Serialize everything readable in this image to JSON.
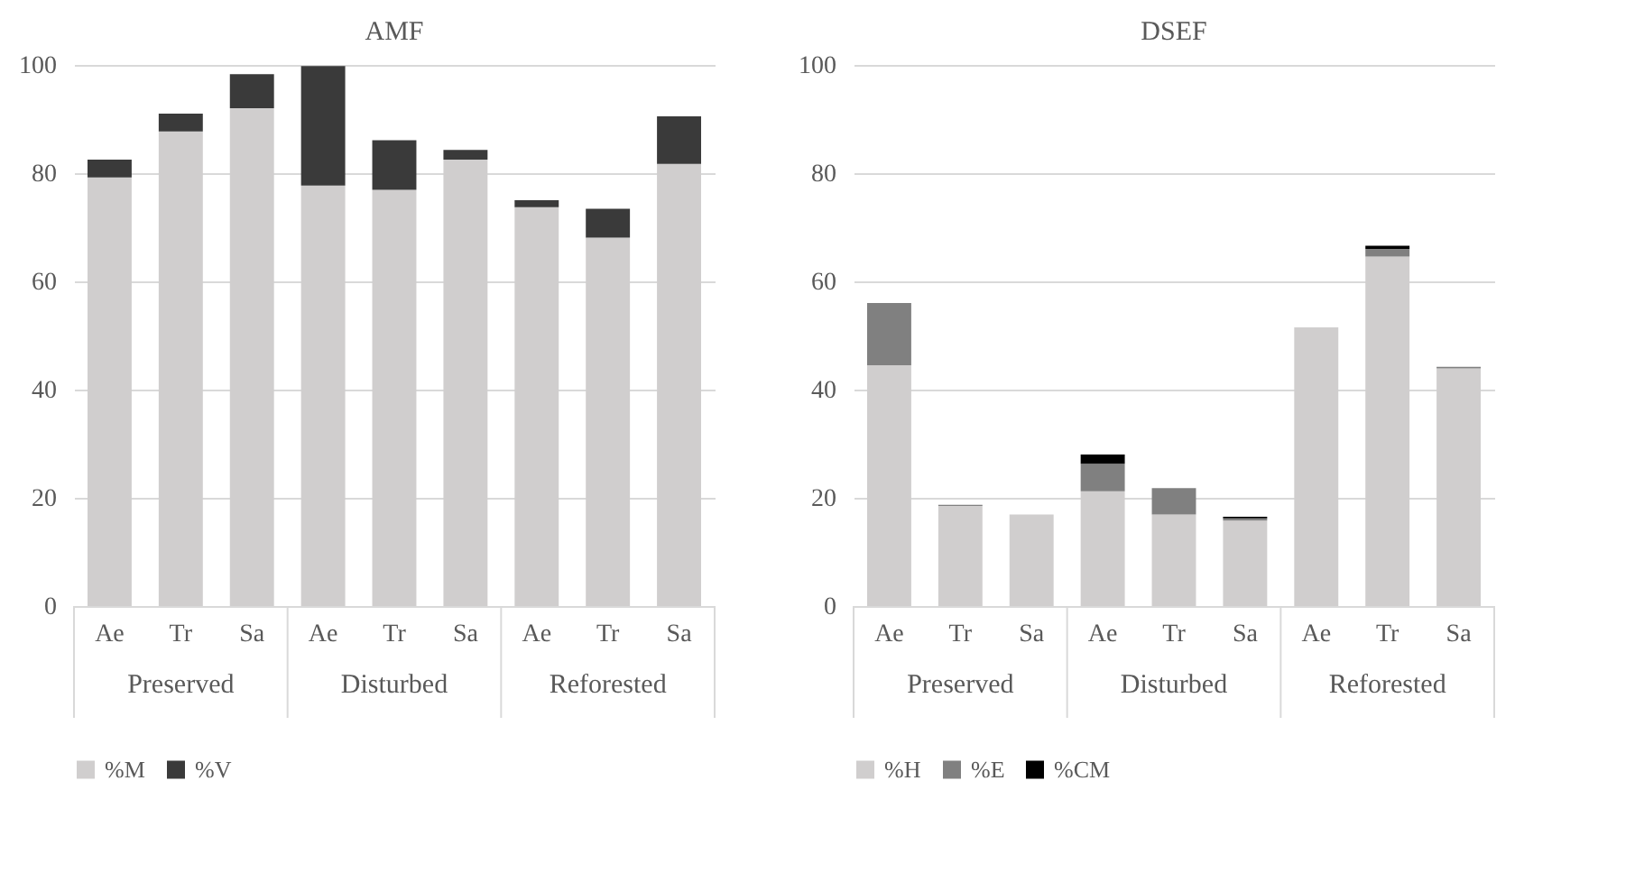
{
  "chart_data": [
    {
      "type": "bar",
      "title": "AMF",
      "stacked": true,
      "categories": [
        "Ae",
        "Tr",
        "Sa",
        "Ae",
        "Tr",
        "Sa",
        "Ae",
        "Tr",
        "Sa"
      ],
      "annotations": [
        "Preserved",
        "Disturbed",
        "Reforested"
      ],
      "ylim": [
        0,
        100
      ],
      "yticks": [
        0,
        20,
        40,
        60,
        80,
        100
      ],
      "grid": "y",
      "legend": "bottom",
      "series": [
        {
          "name": "%M",
          "color": "#d0cece",
          "values": [
            79.2,
            87.7,
            92.0,
            77.7,
            76.9,
            82.5,
            73.7,
            68.1,
            81.7
          ]
        },
        {
          "name": "%V",
          "color": "#3a3a3a",
          "values": [
            3.3,
            3.3,
            6.3,
            22.1,
            9.2,
            1.8,
            1.3,
            5.3,
            8.8
          ]
        }
      ]
    },
    {
      "type": "bar",
      "title": "DSEF",
      "stacked": true,
      "categories": [
        "Ae",
        "Tr",
        "Sa",
        "Ae",
        "Tr",
        "Sa",
        "Ae",
        "Tr",
        "Sa"
      ],
      "annotations": [
        "Preserved",
        "Disturbed",
        "Reforested"
      ],
      "ylim": [
        0,
        100
      ],
      "yticks": [
        0,
        20,
        40,
        60,
        80,
        100
      ],
      "grid": "y",
      "legend": "bottom",
      "series": [
        {
          "name": "%H",
          "color": "#d0cece",
          "values": [
            44.5,
            18.5,
            16.9,
            21.2,
            16.9,
            15.8,
            51.5,
            64.6,
            43.9
          ]
        },
        {
          "name": "%E",
          "color": "#808080",
          "values": [
            11.5,
            0.2,
            null,
            5.1,
            4.9,
            0.4,
            null,
            1.4,
            0.3
          ]
        },
        {
          "name": "%CM",
          "color": "#000000",
          "values": [
            null,
            null,
            null,
            1.7,
            null,
            0.3,
            null,
            0.6,
            null
          ]
        }
      ]
    }
  ]
}
